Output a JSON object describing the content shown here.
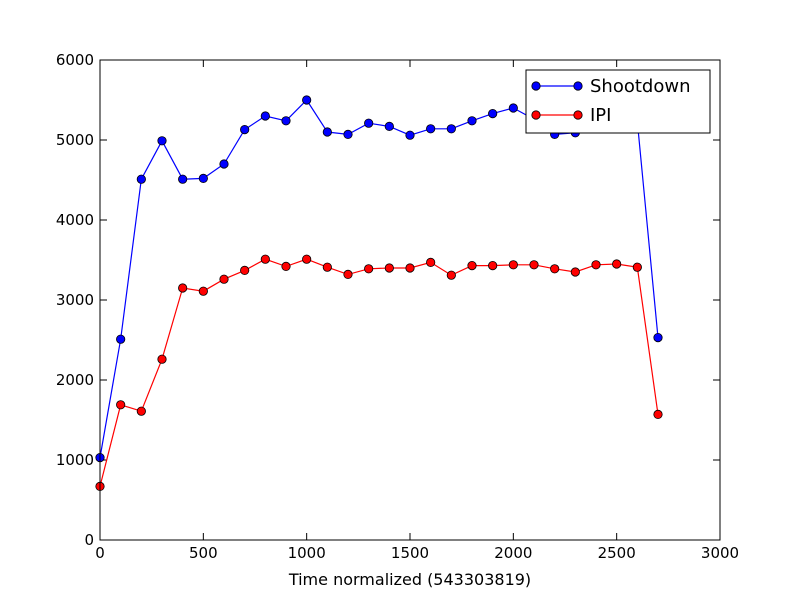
{
  "chart_data": {
    "type": "line",
    "title": "",
    "xlabel": "Time normalized (543303819)",
    "ylabel": "",
    "xlim": [
      0,
      3000
    ],
    "ylim": [
      0,
      6000
    ],
    "xticks": [
      "0",
      "500",
      "1000",
      "1500",
      "2000",
      "2500",
      "3000"
    ],
    "yticks": [
      "0",
      "1000",
      "2000",
      "3000",
      "4000",
      "5000",
      "6000"
    ],
    "grid": false,
    "legend_position": "top-right",
    "series": [
      {
        "name": "Shootdown",
        "color": "#0000ff",
        "marker": "circle",
        "x": [
          0,
          100,
          200,
          300,
          400,
          500,
          600,
          700,
          800,
          900,
          1000,
          1100,
          1200,
          1300,
          1400,
          1500,
          1600,
          1700,
          1800,
          1900,
          2000,
          2100,
          2200,
          2300,
          2400,
          2500,
          2600,
          2700
        ],
        "y": [
          1030,
          2510,
          4510,
          4990,
          4510,
          4520,
          4700,
          5130,
          5300,
          5240,
          5500,
          5100,
          5070,
          5210,
          5170,
          5060,
          5140,
          5140,
          5240,
          5330,
          5400,
          5260,
          5070,
          5090,
          5200,
          5250,
          5230,
          2530
        ]
      },
      {
        "name": "IPI",
        "color": "#ff0000",
        "marker": "circle",
        "x": [
          0,
          100,
          200,
          300,
          400,
          500,
          600,
          700,
          800,
          900,
          1000,
          1100,
          1200,
          1300,
          1400,
          1500,
          1600,
          1700,
          1800,
          1900,
          2000,
          2100,
          2200,
          2300,
          2400,
          2500,
          2600,
          2700
        ],
        "y": [
          670,
          1690,
          1610,
          2260,
          3150,
          3110,
          3260,
          3370,
          3510,
          3420,
          3510,
          3410,
          3320,
          3390,
          3400,
          3400,
          3470,
          3310,
          3430,
          3430,
          3440,
          3440,
          3390,
          3350,
          3440,
          3450,
          3410,
          1570
        ]
      }
    ]
  }
}
